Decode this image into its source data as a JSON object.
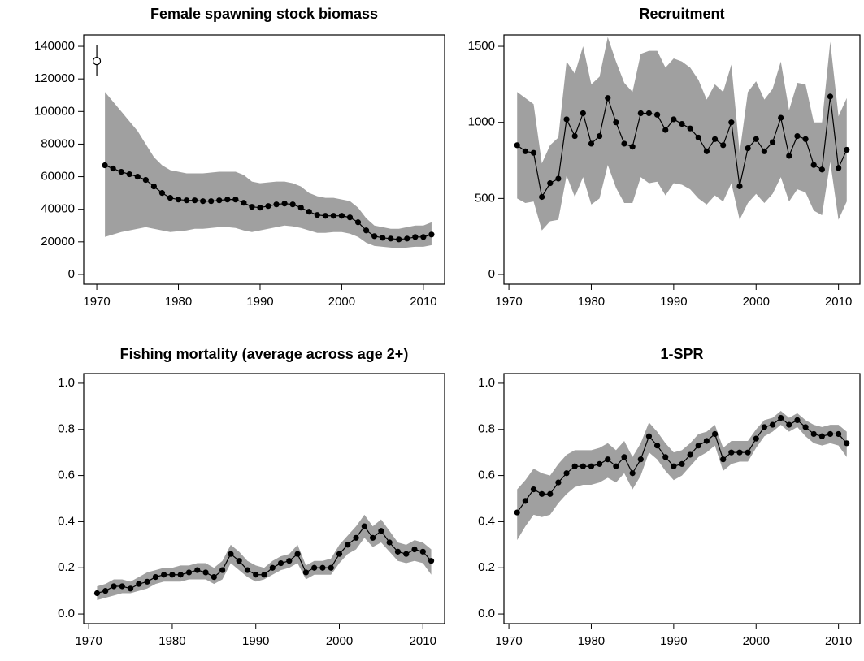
{
  "chart_data": [
    {
      "type": "line",
      "title": "Female spawning stock biomass",
      "x": [
        1971,
        1972,
        1973,
        1974,
        1975,
        1976,
        1977,
        1978,
        1979,
        1980,
        1981,
        1982,
        1983,
        1984,
        1985,
        1986,
        1987,
        1988,
        1989,
        1990,
        1991,
        1992,
        1993,
        1994,
        1995,
        1996,
        1997,
        1998,
        1999,
        2000,
        2001,
        2002,
        2003,
        2004,
        2005,
        2006,
        2007,
        2008,
        2009,
        2010,
        2011
      ],
      "values": [
        67000,
        65000,
        63000,
        61500,
        60000,
        58000,
        54000,
        50000,
        47000,
        46000,
        45500,
        45500,
        45000,
        45000,
        45500,
        46000,
        46000,
        44000,
        41500,
        41000,
        42000,
        43000,
        43500,
        43000,
        41000,
        38500,
        36500,
        36000,
        36000,
        36000,
        35000,
        32000,
        27000,
        23500,
        22500,
        22000,
        21500,
        22000,
        23000,
        23000,
        24500
      ],
      "lower": [
        23000,
        24500,
        26000,
        27000,
        28000,
        29000,
        28000,
        27000,
        26000,
        26500,
        27000,
        28000,
        28000,
        28500,
        29000,
        29000,
        28500,
        27000,
        26000,
        27000,
        28000,
        29000,
        30000,
        29500,
        28500,
        27000,
        25500,
        25500,
        26000,
        26000,
        25000,
        23000,
        19500,
        17500,
        17000,
        16500,
        16000,
        16500,
        17000,
        17000,
        18000
      ],
      "upper": [
        112000,
        106000,
        100000,
        94000,
        88000,
        80000,
        72000,
        67000,
        64000,
        63000,
        62000,
        62000,
        62000,
        62500,
        63000,
        63000,
        63000,
        61000,
        57000,
        56000,
        56500,
        57000,
        57000,
        56000,
        54000,
        50000,
        48000,
        47000,
        47000,
        46000,
        45000,
        41000,
        34500,
        30000,
        29000,
        28000,
        28000,
        29000,
        30000,
        30000,
        32000
      ],
      "unfished": {
        "x": 1970,
        "value": 131000,
        "lower": 122000,
        "upper": 141000
      },
      "color": "#000000",
      "band_color": "#a0a0a0",
      "xlim": [
        1968.4,
        2012.6
      ],
      "xticks": [
        1970,
        1980,
        1990,
        2000,
        2010
      ],
      "ylim": [
        -6000,
        147000
      ],
      "yticks": [
        0,
        20000,
        40000,
        60000,
        80000,
        100000,
        120000,
        140000
      ]
    },
    {
      "type": "line",
      "title": "Recruitment",
      "x": [
        1971,
        1972,
        1973,
        1974,
        1975,
        1976,
        1977,
        1978,
        1979,
        1980,
        1981,
        1982,
        1983,
        1984,
        1985,
        1986,
        1987,
        1988,
        1989,
        1990,
        1991,
        1992,
        1993,
        1994,
        1995,
        1996,
        1997,
        1998,
        1999,
        2000,
        2001,
        2002,
        2003,
        2004,
        2005,
        2006,
        2007,
        2008,
        2009,
        2010,
        2011
      ],
      "values": [
        850,
        810,
        800,
        510,
        600,
        630,
        1020,
        910,
        1060,
        860,
        910,
        1160,
        1000,
        860,
        840,
        1060,
        1060,
        1050,
        950,
        1020,
        990,
        960,
        900,
        810,
        890,
        850,
        1000,
        580,
        830,
        890,
        810,
        870,
        1030,
        780,
        910,
        890,
        720,
        690,
        1170,
        700,
        820
      ],
      "lower": [
        500,
        470,
        480,
        290,
        350,
        360,
        650,
        510,
        640,
        460,
        500,
        720,
        570,
        470,
        470,
        640,
        600,
        610,
        520,
        600,
        590,
        560,
        500,
        460,
        520,
        480,
        600,
        360,
        470,
        530,
        470,
        530,
        640,
        480,
        560,
        540,
        420,
        390,
        740,
        360,
        480
      ],
      "upper": [
        1200,
        1160,
        1120,
        730,
        850,
        900,
        1400,
        1320,
        1500,
        1250,
        1300,
        1560,
        1400,
        1260,
        1200,
        1450,
        1470,
        1470,
        1360,
        1420,
        1400,
        1360,
        1280,
        1150,
        1250,
        1200,
        1380,
        800,
        1200,
        1270,
        1150,
        1220,
        1400,
        1080,
        1260,
        1250,
        1000,
        1000,
        1530,
        1040,
        1160
      ],
      "color": "#000000",
      "band_color": "#a0a0a0",
      "xlim": [
        1969.4,
        2012.6
      ],
      "xticks": [
        1970,
        1980,
        1990,
        2000,
        2010
      ],
      "ylim": [
        -64,
        1575
      ],
      "yticks": [
        0,
        500,
        1000,
        1500
      ]
    },
    {
      "type": "line",
      "title": "Fishing mortality (average across age 2+)",
      "x": [
        1971,
        1972,
        1973,
        1974,
        1975,
        1976,
        1977,
        1978,
        1979,
        1980,
        1981,
        1982,
        1983,
        1984,
        1985,
        1986,
        1987,
        1988,
        1989,
        1990,
        1991,
        1992,
        1993,
        1994,
        1995,
        1996,
        1997,
        1998,
        1999,
        2000,
        2001,
        2002,
        2003,
        2004,
        2005,
        2006,
        2007,
        2008,
        2009,
        2010,
        2011
      ],
      "values": [
        0.09,
        0.1,
        0.12,
        0.12,
        0.11,
        0.13,
        0.14,
        0.16,
        0.17,
        0.17,
        0.17,
        0.18,
        0.19,
        0.18,
        0.16,
        0.19,
        0.26,
        0.23,
        0.19,
        0.17,
        0.17,
        0.2,
        0.22,
        0.23,
        0.26,
        0.18,
        0.2,
        0.2,
        0.2,
        0.26,
        0.3,
        0.33,
        0.38,
        0.33,
        0.36,
        0.31,
        0.27,
        0.26,
        0.28,
        0.27,
        0.23
      ],
      "lower": [
        0.06,
        0.07,
        0.08,
        0.09,
        0.09,
        0.1,
        0.11,
        0.13,
        0.14,
        0.14,
        0.14,
        0.15,
        0.15,
        0.15,
        0.13,
        0.15,
        0.22,
        0.19,
        0.16,
        0.14,
        0.15,
        0.17,
        0.19,
        0.2,
        0.22,
        0.15,
        0.17,
        0.17,
        0.17,
        0.22,
        0.26,
        0.28,
        0.33,
        0.29,
        0.31,
        0.27,
        0.23,
        0.22,
        0.23,
        0.22,
        0.17
      ],
      "upper": [
        0.12,
        0.13,
        0.15,
        0.15,
        0.14,
        0.16,
        0.18,
        0.19,
        0.2,
        0.2,
        0.21,
        0.21,
        0.22,
        0.22,
        0.2,
        0.23,
        0.3,
        0.27,
        0.23,
        0.21,
        0.2,
        0.23,
        0.25,
        0.26,
        0.3,
        0.21,
        0.23,
        0.23,
        0.24,
        0.3,
        0.34,
        0.38,
        0.43,
        0.38,
        0.41,
        0.36,
        0.31,
        0.3,
        0.32,
        0.31,
        0.28
      ],
      "color": "#000000",
      "band_color": "#a0a0a0",
      "xlim": [
        1969.4,
        2012.6
      ],
      "xticks": [
        1970,
        1980,
        1990,
        2000,
        2010
      ],
      "ylim": [
        -0.042,
        1.042
      ],
      "yticks": [
        {
          "value": 0,
          "label": "0.0"
        },
        0.2,
        0.4,
        0.6,
        0.8,
        {
          "value": 1,
          "label": "1.0"
        }
      ]
    },
    {
      "type": "line",
      "title": "1-SPR",
      "x": [
        1971,
        1972,
        1973,
        1974,
        1975,
        1976,
        1977,
        1978,
        1979,
        1980,
        1981,
        1982,
        1983,
        1984,
        1985,
        1986,
        1987,
        1988,
        1989,
        1990,
        1991,
        1992,
        1993,
        1994,
        1995,
        1996,
        1997,
        1998,
        1999,
        2000,
        2001,
        2002,
        2003,
        2004,
        2005,
        2006,
        2007,
        2008,
        2009,
        2010,
        2011
      ],
      "values": [
        0.44,
        0.49,
        0.54,
        0.52,
        0.52,
        0.57,
        0.61,
        0.64,
        0.64,
        0.64,
        0.65,
        0.67,
        0.64,
        0.68,
        0.61,
        0.67,
        0.77,
        0.73,
        0.68,
        0.64,
        0.65,
        0.69,
        0.73,
        0.75,
        0.78,
        0.67,
        0.7,
        0.7,
        0.7,
        0.76,
        0.81,
        0.82,
        0.85,
        0.82,
        0.84,
        0.81,
        0.78,
        0.77,
        0.78,
        0.78,
        0.74
      ],
      "lower": [
        0.32,
        0.38,
        0.43,
        0.42,
        0.43,
        0.48,
        0.52,
        0.55,
        0.56,
        0.56,
        0.57,
        0.59,
        0.57,
        0.61,
        0.54,
        0.6,
        0.7,
        0.67,
        0.62,
        0.58,
        0.6,
        0.64,
        0.68,
        0.7,
        0.73,
        0.62,
        0.65,
        0.66,
        0.66,
        0.72,
        0.77,
        0.79,
        0.82,
        0.79,
        0.81,
        0.77,
        0.74,
        0.73,
        0.74,
        0.73,
        0.68
      ],
      "upper": [
        0.54,
        0.58,
        0.63,
        0.61,
        0.6,
        0.65,
        0.69,
        0.71,
        0.71,
        0.71,
        0.72,
        0.74,
        0.71,
        0.75,
        0.68,
        0.74,
        0.83,
        0.79,
        0.74,
        0.7,
        0.71,
        0.74,
        0.78,
        0.79,
        0.82,
        0.72,
        0.75,
        0.75,
        0.75,
        0.8,
        0.84,
        0.85,
        0.88,
        0.85,
        0.87,
        0.84,
        0.82,
        0.81,
        0.82,
        0.82,
        0.79
      ],
      "color": "#000000",
      "band_color": "#a0a0a0",
      "xlim": [
        1969.4,
        2012.6
      ],
      "xticks": [
        1970,
        1980,
        1990,
        2000,
        2010
      ],
      "ylim": [
        -0.042,
        1.042
      ],
      "yticks": [
        {
          "value": 0,
          "label": "0.0"
        },
        0.2,
        0.4,
        0.6,
        0.8,
        {
          "value": 1,
          "label": "1.0"
        }
      ]
    }
  ]
}
